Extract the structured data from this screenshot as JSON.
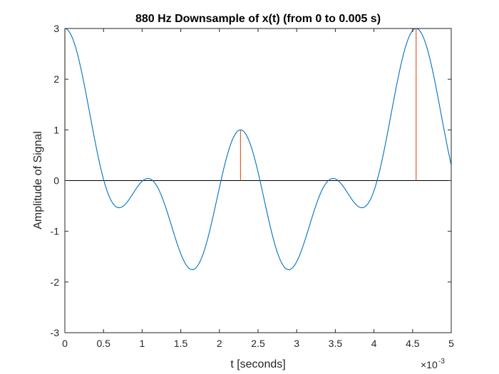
{
  "chart_data": {
    "type": "line",
    "title": "880 Hz Downsample of x(t) (from 0 to 0.005 s)",
    "xlabel": "t [seconds]",
    "ylabel": "Amplitude of Signal",
    "xlim": [
      0,
      0.005
    ],
    "ylim": [
      -3,
      3
    ],
    "x_scale_exponent_label": "×10",
    "x_scale_exponent": "-3",
    "x_ticks": [
      0,
      0.0005,
      0.001,
      0.0015,
      0.002,
      0.0025,
      0.003,
      0.0035,
      0.004,
      0.0045,
      0.005
    ],
    "x_tick_labels": [
      "0",
      "0.5",
      "1",
      "1.5",
      "2",
      "2.5",
      "3",
      "3.5",
      "4",
      "4.5",
      "5"
    ],
    "y_ticks": [
      -3,
      -2,
      -1,
      0,
      1,
      2,
      3
    ],
    "y_tick_labels": [
      "-3",
      "-2",
      "-1",
      "0",
      "1",
      "2",
      "3"
    ],
    "grid": false,
    "zero_line": true,
    "series": [
      {
        "style": "line",
        "color": "#0072BD",
        "function": "cos(2π·220t) + cos(2π·440t) + cos(2π·880t)",
        "x_start": 0,
        "x_end": 0.005,
        "samples": 600
      },
      {
        "style": "stem",
        "color": "#D95319",
        "x": [
          0,
          0.0022727,
          0.0045455
        ],
        "y": [
          3,
          1,
          3
        ]
      }
    ],
    "colors": {
      "axes": "#262626",
      "zero_line": "#000000",
      "signal": "#0072BD",
      "samples": "#D95319"
    }
  }
}
